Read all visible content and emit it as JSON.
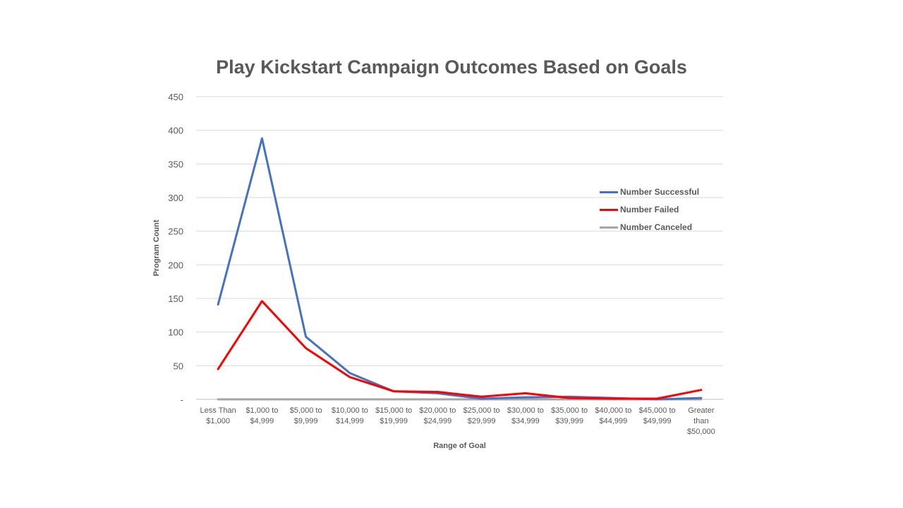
{
  "chart_data": {
    "type": "line",
    "title": "Play Kickstart Campaign Outcomes Based on Goals",
    "xlabel": "Range of Goal",
    "ylabel": "Program Count",
    "categories": [
      "Less Than $1,000",
      "$1,000 to $4,999",
      "$5,000 to $9,999",
      "$10,000 to $14,999",
      "$15,000 to $19,999",
      "$20,000 to $24,999",
      "$25,000 to $29,999",
      "$30,000 to $34,999",
      "$35,000 to $39,999",
      "$40,000 to $44,999",
      "$45,000 to $49,999",
      "Greater than $50,000"
    ],
    "category_lines": [
      [
        "Less Than",
        "$1,000"
      ],
      [
        "$1,000 to",
        "$4,999"
      ],
      [
        "$5,000 to",
        "$9,999"
      ],
      [
        "$10,000 to",
        "$14,999"
      ],
      [
        "$15,000 to",
        "$19,999"
      ],
      [
        "$20,000 to",
        "$24,999"
      ],
      [
        "$25,000 to",
        "$29,999"
      ],
      [
        "$30,000 to",
        "$34,999"
      ],
      [
        "$35,000 to",
        "$39,999"
      ],
      [
        "$40,000 to",
        "$44,999"
      ],
      [
        "$45,000 to",
        "$49,999"
      ],
      [
        "Greater",
        "than",
        "$50,000"
      ]
    ],
    "series": [
      {
        "name": "Number Successful",
        "color": "#4472c4",
        "values": [
          141,
          388,
          93,
          39,
          12,
          9,
          1,
          3,
          4,
          2,
          0,
          2
        ]
      },
      {
        "name": "Number Failed",
        "color": "#ff0000",
        "values": [
          45,
          146,
          76,
          33,
          12,
          11,
          4,
          9,
          2,
          1,
          1,
          14
        ]
      },
      {
        "name": "Number Canceled",
        "color": "#a5a5a5",
        "values": [
          0,
          0,
          0,
          0,
          0,
          0,
          0,
          0,
          0,
          0,
          0,
          0
        ]
      }
    ],
    "ylim": [
      0,
      450
    ],
    "yticks": [
      0,
      50,
      100,
      150,
      200,
      250,
      300,
      350,
      400,
      450
    ],
    "ytick_labels": [
      "-",
      "50",
      "100",
      "150",
      "200",
      "250",
      "300",
      "350",
      "400",
      "450"
    ],
    "grid": true,
    "legend_position": "right"
  }
}
